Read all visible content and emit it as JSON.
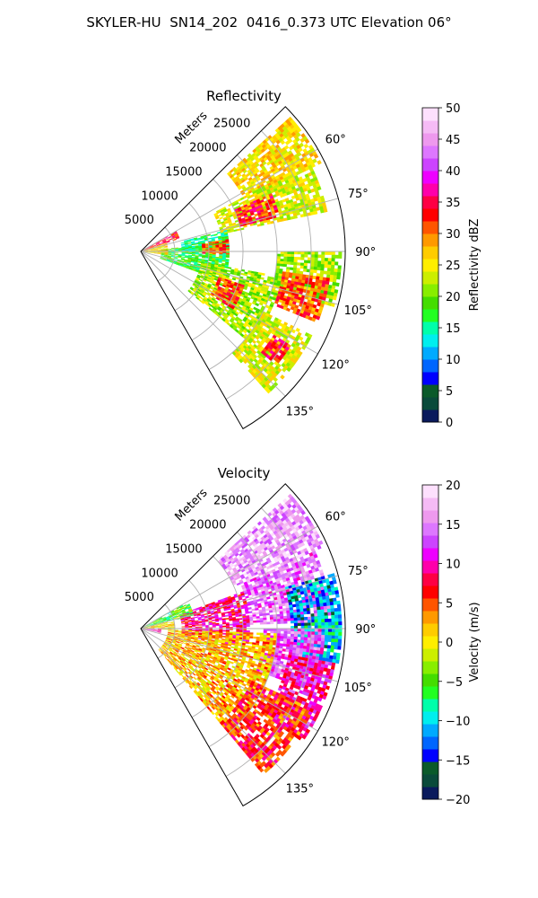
{
  "figure_title": "SKYLER-HU  SN14_202  0416_0.373 UTC Elevation 06°",
  "chart_data": [
    {
      "type": "heatmap",
      "projection": "polar sector (PPI)",
      "title": "Reflectivity",
      "range_label": "Meters",
      "range_ticks": [
        "5000",
        "10000",
        "15000",
        "20000",
        "25000"
      ],
      "range_max": 30000,
      "azimuth_range": [
        45,
        150
      ],
      "azimuth_ticks": [
        "60°",
        "75°",
        "90°",
        "105°",
        "120°",
        "135°"
      ],
      "colorbar": {
        "label": "Reflectivity dBZ",
        "range": [
          0,
          50
        ],
        "ticks": [
          "0",
          "5",
          "10",
          "15",
          "20",
          "25",
          "30",
          "35",
          "40",
          "45",
          "50"
        ],
        "colors": [
          "#0a1a5c",
          "#0a4a3a",
          "#0b5a2a",
          "#0000ff",
          "#0066ff",
          "#00aaff",
          "#00eeee",
          "#00ffaa",
          "#22ff22",
          "#44dd00",
          "#88ee00",
          "#ccee00",
          "#ffee00",
          "#ffcc00",
          "#ff9900",
          "#ff5500",
          "#ff0000",
          "#ff0044",
          "#ff00aa",
          "#ee00ff",
          "#cc44ff",
          "#dd77ff",
          "#ee99ee",
          "#f5bbf5",
          "#fde0fd"
        ]
      },
      "echo_regions": [
        {
          "az": [
            48,
            64
          ],
          "r": [
            17000,
            29500
          ],
          "value": 26
        },
        {
          "az": [
            62,
            78
          ],
          "r": [
            12000,
            28000
          ],
          "value": 24
        },
        {
          "az": [
            66,
            76
          ],
          "r": [
            15000,
            21000
          ],
          "value": 33
        },
        {
          "az": [
            90,
            106
          ],
          "r": [
            20000,
            29500
          ],
          "value": 22
        },
        {
          "az": [
            98,
            112
          ],
          "r": [
            21000,
            28000
          ],
          "value": 31
        },
        {
          "az": [
            84,
            110
          ],
          "r": [
            3000,
            13000
          ],
          "value": 18
        },
        {
          "az": [
            100,
            130
          ],
          "r": [
            9000,
            21000
          ],
          "value": 22
        },
        {
          "az": [
            108,
            122
          ],
          "r": [
            12000,
            16000
          ],
          "value": 32
        },
        {
          "az": [
            116,
            138
          ],
          "r": [
            20000,
            28000
          ],
          "value": 24
        },
        {
          "az": [
            122,
            130
          ],
          "r": [
            23000,
            26000
          ],
          "value": 33
        },
        {
          "az": [
            60,
            72
          ],
          "r": [
            0,
            6000
          ],
          "value": 34
        },
        {
          "az": [
            72,
            98
          ],
          "r": [
            0,
            4000
          ],
          "value": 26
        },
        {
          "az": [
            76,
            90
          ],
          "r": [
            6000,
            13000
          ],
          "value": 16
        },
        {
          "az": [
            82,
            92
          ],
          "r": [
            9000,
            13000
          ],
          "value": 31
        }
      ]
    },
    {
      "type": "heatmap",
      "projection": "polar sector (PPI)",
      "title": "Velocity",
      "range_label": "Meters",
      "range_ticks": [
        "5000",
        "10000",
        "15000",
        "20000",
        "25000"
      ],
      "range_max": 30000,
      "azimuth_range": [
        45,
        150
      ],
      "azimuth_ticks": [
        "60°",
        "75°",
        "90°",
        "105°",
        "120°",
        "135°"
      ],
      "colorbar": {
        "label": "Velocity (m/s)",
        "range": [
          -20,
          20
        ],
        "ticks": [
          "−20",
          "−15",
          "−10",
          "−5",
          "0",
          "5",
          "10",
          "15",
          "20"
        ],
        "colors": [
          "#0a1a5c",
          "#0a4a3a",
          "#0b5a2a",
          "#0000ff",
          "#0066ff",
          "#00aaff",
          "#00eeee",
          "#00ffaa",
          "#22ff22",
          "#44dd00",
          "#88ee00",
          "#ccee00",
          "#ffee00",
          "#ffcc00",
          "#ff9900",
          "#ff5500",
          "#ff0000",
          "#ff0044",
          "#ff00aa",
          "#ee00ff",
          "#cc44ff",
          "#dd77ff",
          "#ee99ee",
          "#f5bbf5",
          "#fde0fd"
        ]
      },
      "echo_regions": [
        {
          "az": [
            48,
            66
          ],
          "r": [
            15000,
            29500
          ],
          "value": 16
        },
        {
          "az": [
            66,
            88
          ],
          "r": [
            16000,
            28000
          ],
          "value": 14
        },
        {
          "az": [
            74,
            96
          ],
          "r": [
            22000,
            29500
          ],
          "value": -12
        },
        {
          "az": [
            86,
            100
          ],
          "r": [
            24000,
            29500
          ],
          "value": -10
        },
        {
          "az": [
            90,
            110
          ],
          "r": [
            18000,
            27000
          ],
          "value": 13
        },
        {
          "az": [
            100,
            125
          ],
          "r": [
            22000,
            29000
          ],
          "value": 10
        },
        {
          "az": [
            70,
            100
          ],
          "r": [
            6000,
            16000
          ],
          "value": 9
        },
        {
          "az": [
            92,
            140
          ],
          "r": [
            4000,
            20000
          ],
          "value": 2
        },
        {
          "az": [
            115,
            140
          ],
          "r": [
            18000,
            28000
          ],
          "value": 6
        },
        {
          "az": [
            60,
            76
          ],
          "r": [
            0,
            8000
          ],
          "value": -5
        },
        {
          "az": [
            76,
            92
          ],
          "r": [
            0,
            5000
          ],
          "value": 1
        },
        {
          "az": [
            92,
            102
          ],
          "r": [
            0,
            3000
          ],
          "value": 11
        }
      ]
    }
  ]
}
